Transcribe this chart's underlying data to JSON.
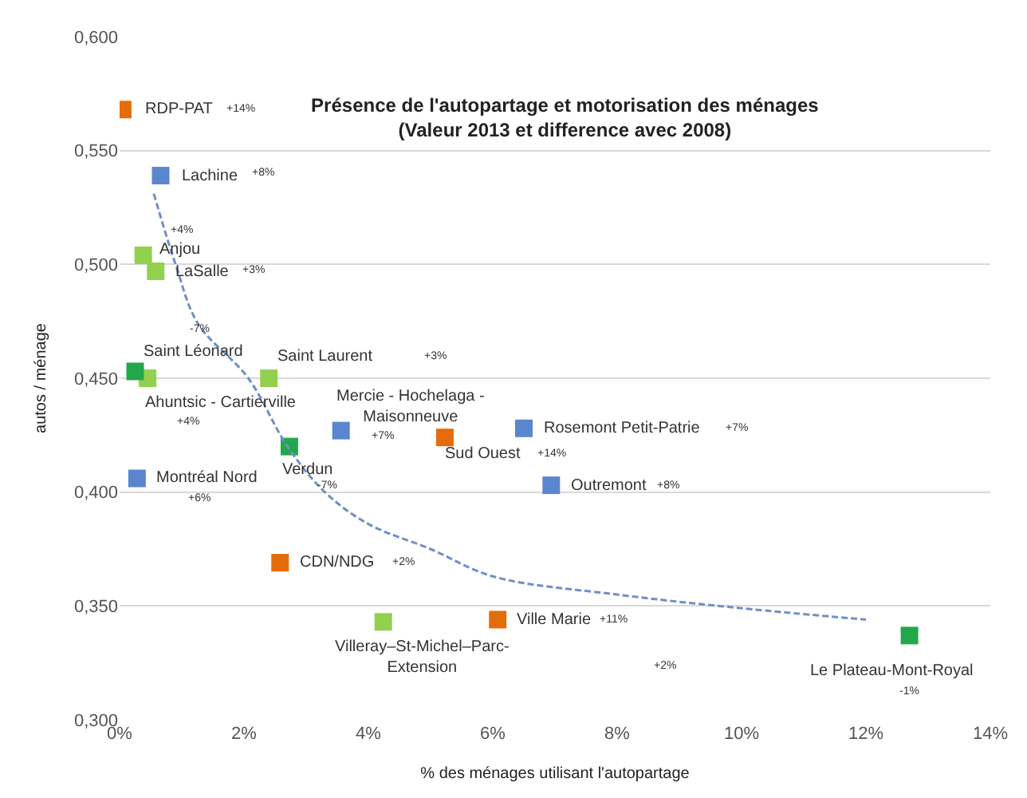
{
  "chart_data": {
    "type": "scatter",
    "title": "Présence de l'autopartage et motorisation des ménages\n(Valeur 2013 et difference avec 2008)",
    "xlabel": "% des ménages utilisant l'autopartage",
    "ylabel": "autos / ménage",
    "xlim": [
      0,
      14
    ],
    "xticks": [
      {
        "value": 0,
        "label": "0%"
      },
      {
        "value": 2,
        "label": "2%"
      },
      {
        "value": 4,
        "label": "4%"
      },
      {
        "value": 6,
        "label": "6%"
      },
      {
        "value": 8,
        "label": "8%"
      },
      {
        "value": 10,
        "label": "10%"
      },
      {
        "value": 12,
        "label": "12%"
      },
      {
        "value": 14,
        "label": "14%"
      }
    ],
    "ylim": [
      0.3,
      0.6
    ],
    "yticks": [
      {
        "value": 0.3,
        "label": "0,300"
      },
      {
        "value": 0.35,
        "label": "0,350"
      },
      {
        "value": 0.4,
        "label": "0,400"
      },
      {
        "value": 0.45,
        "label": "0,450"
      },
      {
        "value": 0.5,
        "label": "0,500"
      },
      {
        "value": 0.55,
        "label": "0,550"
      },
      {
        "value": 0.6,
        "label": "0,600"
      }
    ],
    "grid": "y",
    "marker": "square",
    "series": [
      {
        "color": "#e46c0a",
        "x": [
          0.05,
          5.23,
          2.58,
          6.08
        ],
        "values": [
          0.568,
          0.424,
          0.369,
          0.344
        ]
      },
      {
        "color": "#5a86cf",
        "x": [
          0.66,
          3.56,
          6.5,
          6.94,
          0.28
        ],
        "values": [
          0.539,
          0.427,
          0.428,
          0.403,
          0.406
        ]
      },
      {
        "color": "#92d050",
        "x": [
          0.38,
          0.58,
          0.45,
          2.4,
          4.24
        ],
        "values": [
          0.504,
          0.497,
          0.45,
          0.45,
          0.343
        ]
      },
      {
        "color": "#22a84b",
        "x": [
          0.25,
          2.73,
          12.7
        ],
        "values": [
          0.453,
          0.42,
          0.337
        ]
      },
      {
        "type": "line",
        "line_style": "dashed",
        "marker": "none",
        "color": "#6f8fc6",
        "x": [
          0.55,
          0.9,
          1.26,
          2.07,
          2.7,
          3.3,
          4,
          5,
          6,
          8,
          10,
          12
        ],
        "values": [
          0.531,
          0.5,
          0.474,
          0.45,
          0.42,
          0.4,
          0.386,
          0.375,
          0.363,
          0.355,
          0.349,
          0.344
        ]
      }
    ],
    "annotations": [
      {
        "text": "RDP-PAT",
        "x": 0.05,
        "y": 0.568
      },
      "+14%",
      {
        "text": "Lachine",
        "x": 0.66,
        "y": 0.539
      },
      "+8%",
      {
        "text": "Anjou",
        "x": 0.38,
        "y": 0.504
      },
      "+4%",
      {
        "text": "LaSalle",
        "x": 0.58,
        "y": 0.497
      },
      "+3%",
      {
        "text": "Saint Léonard",
        "x": 0.25,
        "y": 0.453
      },
      "-7%",
      {
        "text": "Ahuntsic - Cartierville",
        "x": 0.45,
        "y": 0.45
      },
      "+4%",
      {
        "text": "Saint Laurent",
        "x": 2.4,
        "y": 0.45
      },
      "+3%",
      {
        "text": "Mercie - Hochelaga -\nMaisonneuve",
        "x": 3.56,
        "y": 0.427
      },
      "+7%",
      {
        "text": "Sud Ouest",
        "x": 5.23,
        "y": 0.424
      },
      "+14%",
      {
        "text": "Rosemont Petit-Patrie",
        "x": 6.5,
        "y": 0.428
      },
      "+7%",
      {
        "text": "Outremont",
        "x": 6.94,
        "y": 0.403
      },
      "+8%",
      {
        "text": "Verdun",
        "x": 2.73,
        "y": 0.42
      },
      "-7%",
      {
        "text": "Montréal Nord",
        "x": 0.28,
        "y": 0.406
      },
      "+6%",
      {
        "text": "CDN/NDG",
        "x": 2.58,
        "y": 0.369
      },
      "+2%",
      {
        "text": "Villeray–St-Michel–Parc-\nExtension",
        "x": 4.24,
        "y": 0.343
      },
      "+2%",
      {
        "text": "Ville Marie",
        "x": 6.08,
        "y": 0.344
      },
      "+11%",
      {
        "text": "Le Plateau-Mont-Royal",
        "x": 12.7,
        "y": 0.337
      },
      "-1%"
    ]
  }
}
